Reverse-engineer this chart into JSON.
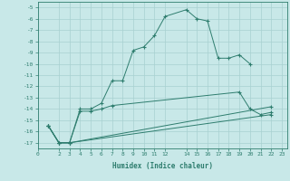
{
  "xlabel": "Humidex (Indice chaleur)",
  "background_color": "#c8e8e8",
  "line_color": "#2e7d6e",
  "grid_color": "#a8d0d0",
  "xlim": [
    0,
    23.5
  ],
  "ylim": [
    -17.5,
    -4.5
  ],
  "xticks": [
    0,
    2,
    3,
    4,
    5,
    6,
    7,
    8,
    9,
    10,
    11,
    12,
    14,
    15,
    16,
    17,
    18,
    19,
    20,
    21,
    22,
    23
  ],
  "yticks": [
    -5,
    -6,
    -7,
    -8,
    -9,
    -10,
    -11,
    -12,
    -13,
    -14,
    -15,
    -16,
    -17
  ],
  "line1_x": [
    1,
    2,
    3,
    4,
    5,
    6,
    7,
    8,
    9,
    10,
    11,
    12,
    14,
    15,
    16,
    17,
    18,
    19,
    20
  ],
  "line1_y": [
    -15.5,
    -17.0,
    -17.0,
    -14.0,
    -14.0,
    -13.5,
    -11.5,
    -11.5,
    -8.8,
    -8.5,
    -7.5,
    -5.8,
    -5.2,
    -6.0,
    -6.2,
    -9.5,
    -9.5,
    -9.2,
    -10.0
  ],
  "line2_x": [
    1,
    2,
    3,
    4,
    5,
    6,
    7,
    19,
    20,
    21,
    22
  ],
  "line2_y": [
    -15.5,
    -17.0,
    -17.0,
    -14.2,
    -14.2,
    -14.0,
    -13.7,
    -12.5,
    -14.0,
    -14.5,
    -14.3
  ],
  "line3_x": [
    1,
    2,
    3,
    22
  ],
  "line3_y": [
    -15.5,
    -17.0,
    -17.0,
    -13.8
  ],
  "line4_x": [
    1,
    2,
    3,
    22
  ],
  "line4_y": [
    -15.5,
    -17.0,
    -17.0,
    -14.5
  ]
}
